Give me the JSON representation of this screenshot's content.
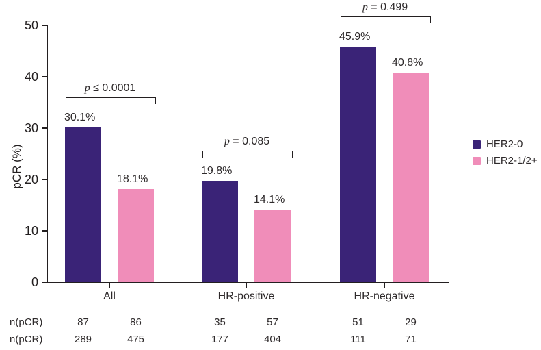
{
  "chart_data": {
    "type": "bar",
    "title": "",
    "ylabel": "pCR (%)",
    "ylim": [
      0,
      50
    ],
    "yticks": [
      0,
      10,
      20,
      30,
      40,
      50
    ],
    "categories": [
      "All",
      "HR-positive",
      "HR-negative"
    ],
    "series": [
      {
        "name": "HER2-0",
        "color": "#3a2377",
        "values": [
          30.1,
          19.8,
          45.9
        ],
        "value_labels": [
          "30.1%",
          "19.8%",
          "45.9%"
        ]
      },
      {
        "name": "HER2-1/2+",
        "color": "#f08db9",
        "values": [
          18.1,
          14.1,
          40.8
        ],
        "value_labels": [
          "18.1%",
          "14.1%",
          "40.8%"
        ]
      }
    ],
    "p_value_annotations": [
      "p ≤ 0.0001",
      "p = 0.085",
      "p = 0.499"
    ],
    "legend_position": "center-right",
    "grid": false,
    "axis_color": "#231f20",
    "text_color": "#2e2a2b",
    "background_color": "#ffffff"
  },
  "sample_table": {
    "rows": [
      {
        "label": "n(pCR)",
        "values": [
          "87",
          "86",
          "35",
          "57",
          "51",
          "29"
        ]
      },
      {
        "label": "n(pCR)",
        "values": [
          "289",
          "475",
          "177",
          "404",
          "111",
          "71"
        ]
      }
    ]
  }
}
